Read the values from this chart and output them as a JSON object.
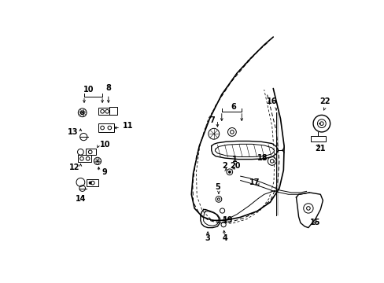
{
  "bg_color": "#ffffff",
  "line_color": "#000000",
  "fig_width": 4.89,
  "fig_height": 3.6,
  "dpi": 100,
  "door_outer": {
    "x": [
      0.305,
      0.295,
      0.275,
      0.255,
      0.235,
      0.225,
      0.225,
      0.235,
      0.255,
      0.285,
      0.32,
      0.365,
      0.415,
      0.46,
      0.495,
      0.515,
      0.525,
      0.525,
      0.52,
      0.51,
      0.495,
      0.48,
      0.46,
      0.44
    ],
    "y": [
      0.97,
      0.95,
      0.9,
      0.83,
      0.74,
      0.63,
      0.51,
      0.4,
      0.31,
      0.23,
      0.175,
      0.14,
      0.12,
      0.115,
      0.12,
      0.135,
      0.155,
      0.22,
      0.33,
      0.5,
      0.65,
      0.76,
      0.84,
      0.9
    ]
  },
  "door_inner1": {
    "x": [
      0.415,
      0.43,
      0.445,
      0.455,
      0.46,
      0.458,
      0.445,
      0.425,
      0.395,
      0.355,
      0.305,
      0.265,
      0.245,
      0.238,
      0.24,
      0.255,
      0.275,
      0.295,
      0.305
    ],
    "y": [
      0.9,
      0.86,
      0.8,
      0.72,
      0.6,
      0.47,
      0.34,
      0.25,
      0.195,
      0.165,
      0.155,
      0.165,
      0.2,
      0.28,
      0.38,
      0.5,
      0.63,
      0.76,
      0.86
    ]
  },
  "door_inner2": {
    "x": [
      0.39,
      0.405,
      0.415,
      0.42,
      0.418,
      0.405,
      0.385,
      0.355,
      0.315,
      0.275,
      0.255,
      0.252,
      0.26,
      0.275,
      0.295,
      0.31
    ],
    "y": [
      0.88,
      0.83,
      0.75,
      0.63,
      0.5,
      0.37,
      0.27,
      0.215,
      0.185,
      0.185,
      0.215,
      0.3,
      0.4,
      0.52,
      0.66,
      0.79
    ]
  }
}
